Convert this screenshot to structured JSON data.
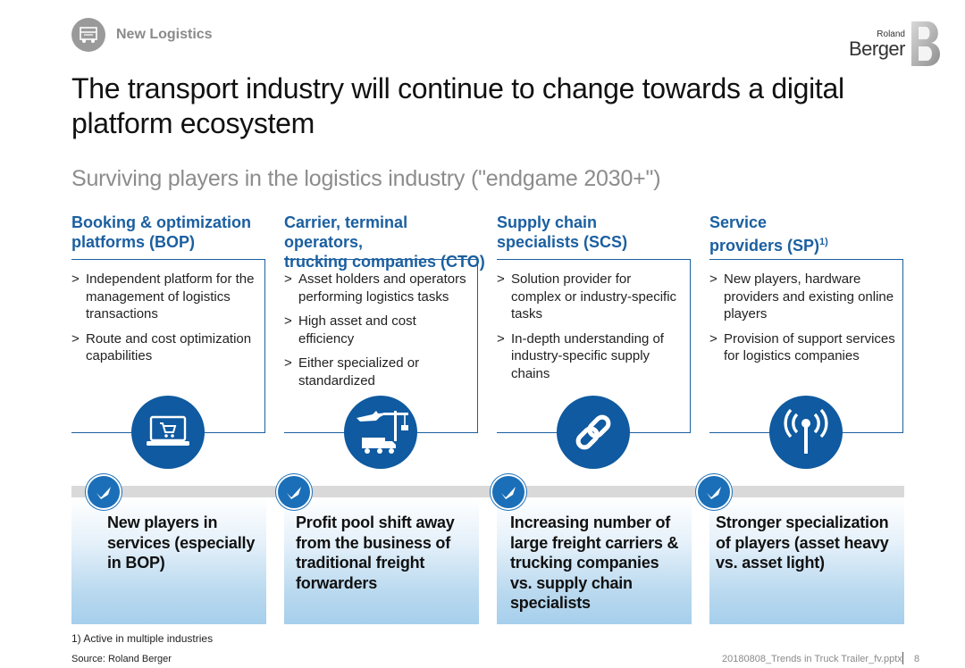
{
  "header": {
    "section_label": "New Logistics",
    "logo": {
      "small": "Roland",
      "large": "Berger"
    }
  },
  "title": "The transport industry will continue to change towards a digital platform ecosystem",
  "subtitle": "Surviving players in the logistics industry (\"endgame 2030+\")",
  "columns": [
    {
      "heading_line1": "Booking & optimization",
      "heading_line2": "platforms (BOP)",
      "heading_sup": "",
      "icon": "laptop-cart-icon",
      "bullets": [
        "Independent platform for the management of logistics transactions",
        "Route and cost optimization capabilities"
      ],
      "outcome": "New players in services (especially in BOP)"
    },
    {
      "heading_line1": "Carrier, terminal operators,",
      "heading_line2": "trucking companies (CTO)",
      "heading_sup": "",
      "icon": "crane-plane-truck-icon",
      "bullets": [
        "Asset holders and operators performing logistics tasks",
        "High asset and cost efficiency",
        "Either specialized or standardized"
      ],
      "outcome": "Profit pool shift away from the business of traditional freight forwarders"
    },
    {
      "heading_line1": "Supply chain",
      "heading_line2": "specialists (SCS)",
      "heading_sup": "",
      "icon": "chain-link-icon",
      "bullets": [
        "Solution provider for complex or industry-specific tasks",
        "In-depth understanding of industry-specific supply chains"
      ],
      "outcome": "Increasing number of large freight carriers & trucking companies vs. supply chain specialists"
    },
    {
      "heading_line1": "Service",
      "heading_line2": "providers (SP)",
      "heading_sup": "1)",
      "icon": "antenna-signal-icon",
      "bullets": [
        "New players, hardware providers and existing online players",
        "Provision of support services for logistics companies"
      ],
      "outcome": "Stronger specialization of players (asset heavy vs. asset light)"
    }
  ],
  "footnote": "1) Active in multiple industries",
  "source": "Source: Roland Berger",
  "file_ref": "20180808_Trends in Truck Trailer_fv.pptx",
  "page_number": "8",
  "colors": {
    "primary_blue": "#1b5fa0",
    "icon_blue": "#0f5aa0",
    "grey": "#8c8c8c"
  }
}
